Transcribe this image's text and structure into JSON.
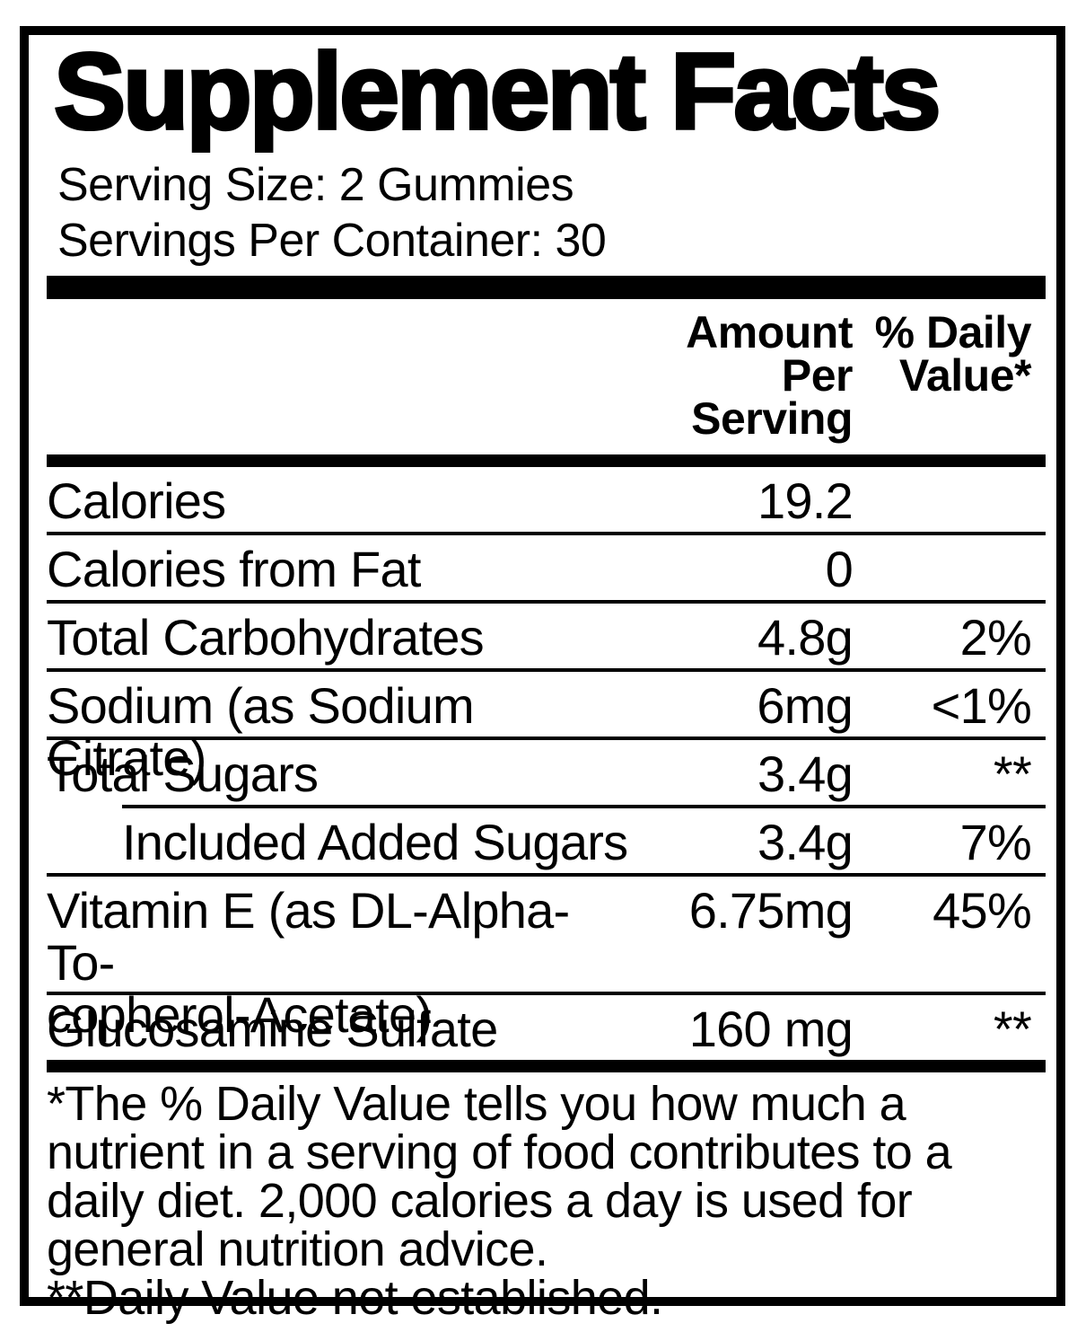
{
  "page": {
    "background_color": "#ffffff",
    "text_color": "#000000"
  },
  "label": {
    "title": "Supplement Facts",
    "serving_size": "Serving Size: 2 Gummies",
    "servings_per_container": "Servings Per Container: 30",
    "header": {
      "amount": "Amount Per\nServing",
      "daily_value": "% Daily\nValue*"
    },
    "rows": [
      {
        "name": "Calories",
        "amount": "19.2",
        "dv": ""
      },
      {
        "name": "Calories from Fat",
        "amount": "0",
        "dv": ""
      },
      {
        "name": "Total Carbohydrates",
        "amount": "4.8g",
        "dv": "2%"
      },
      {
        "name": "Sodium (as Sodium Citrate)",
        "amount": "6mg",
        "dv": "<1%"
      },
      {
        "name": "Total Sugars",
        "amount": "3.4g",
        "dv": "**"
      },
      {
        "name": "Included Added Sugars",
        "amount": "3.4g",
        "dv": "7%"
      },
      {
        "name": "Vitamin E (as DL-Alpha-To-\ncopherol-Acetate)",
        "amount": "6.75mg",
        "dv": "45%"
      },
      {
        "name": "Glucosamine Sulfate",
        "amount": "160 mg",
        "dv": "**"
      }
    ],
    "footnote": "*The % Daily Value tells you how much a\nnutrient in a serving of food contributes to a\ndaily diet. 2,000 calories a day is used for\ngeneral nutrition advice.\n**Daily Value not established."
  }
}
